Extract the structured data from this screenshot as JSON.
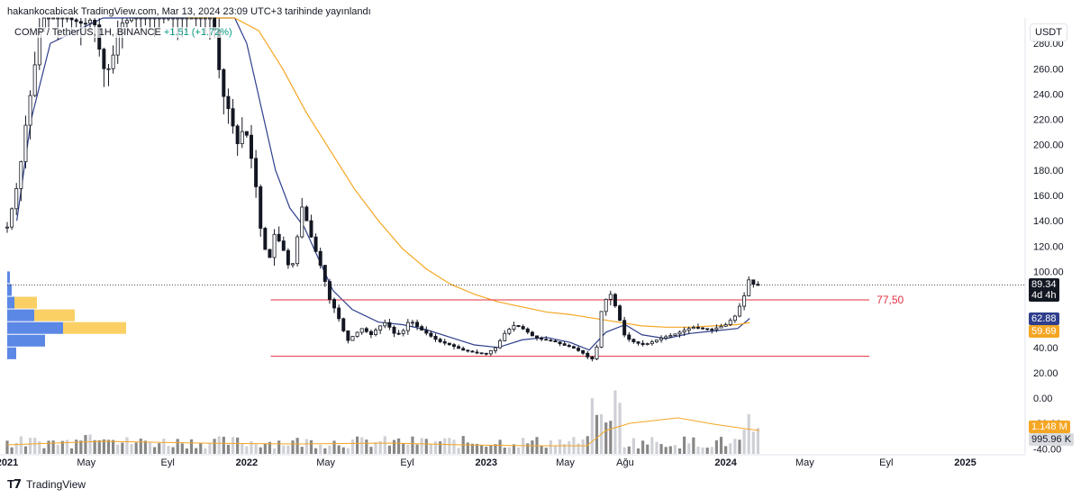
{
  "attribution": "hakankocabicak TradingView.com, Mar 13, 2024 23:09 UTC+3 tarihinde yayınlandı",
  "legend": {
    "symbol": "COMP / TetherUS, 1H, BINANCE",
    "change": "+1.51 (+1.72%)"
  },
  "unit": "USDT",
  "footer": {
    "brand": "TradingView"
  },
  "colors": {
    "up": "#ffffff",
    "down": "#131722",
    "ma_fast": "#2e3e8c",
    "ma_slow": "#f5a623",
    "level": "#e0303f",
    "vol_gray": "#7a7a7a",
    "vol_light": "#c9cbd1",
    "vp_blue": "#3f73e0",
    "vp_yellow": "#f9c84a"
  },
  "chart_data": {
    "type": "candlestick",
    "x_labels": [
      "2021",
      "May",
      "Eyl",
      "2022",
      "May",
      "Eyl",
      "2023",
      "May",
      "Ağu",
      "2024",
      "May",
      "Eyl",
      "2025"
    ],
    "x_label_dates": [
      2021.0,
      2021.33,
      2021.67,
      2022.0,
      2022.33,
      2022.67,
      2023.0,
      2023.33,
      2023.58,
      2024.0,
      2024.33,
      2024.67,
      2025.0
    ],
    "y_ticks": [
      "280.00",
      "260.00",
      "240.00",
      "220.00",
      "200.00",
      "180.00",
      "160.00",
      "140.00",
      "120.00",
      "100.00",
      "80.00",
      "60.00",
      "40.00",
      "20.00",
      "0.00",
      "-20.00",
      "-40.00"
    ],
    "y_tick_values": [
      280,
      260,
      240,
      220,
      200,
      180,
      160,
      140,
      120,
      100,
      80,
      60,
      40,
      20,
      0,
      -20,
      -40
    ],
    "ylim": [
      -44,
      300
    ],
    "xlim": [
      2021.0,
      2025.25
    ],
    "price_path": [
      [
        2021.0,
        135
      ],
      [
        2021.02,
        150
      ],
      [
        2021.05,
        175
      ],
      [
        2021.08,
        220
      ],
      [
        2021.11,
        255
      ],
      [
        2021.14,
        300
      ],
      [
        2021.25,
        300
      ],
      [
        2021.32,
        295
      ],
      [
        2021.36,
        300
      ],
      [
        2021.4,
        260
      ],
      [
        2021.43,
        260
      ],
      [
        2021.47,
        295
      ],
      [
        2021.52,
        300
      ],
      [
        2021.6,
        300
      ],
      [
        2021.7,
        300
      ],
      [
        2021.8,
        300
      ],
      [
        2021.86,
        300
      ],
      [
        2021.88,
        265
      ],
      [
        2021.9,
        240
      ],
      [
        2021.93,
        225
      ],
      [
        2021.96,
        200
      ],
      [
        2021.99,
        215
      ],
      [
        2022.01,
        200
      ],
      [
        2022.04,
        165
      ],
      [
        2022.06,
        130
      ],
      [
        2022.08,
        115
      ],
      [
        2022.1,
        110
      ],
      [
        2022.12,
        135
      ],
      [
        2022.14,
        120
      ],
      [
        2022.16,
        115
      ],
      [
        2022.18,
        100
      ],
      [
        2022.2,
        110
      ],
      [
        2022.22,
        140
      ],
      [
        2022.24,
        160
      ],
      [
        2022.25,
        140
      ],
      [
        2022.28,
        120
      ],
      [
        2022.3,
        110
      ],
      [
        2022.33,
        90
      ],
      [
        2022.35,
        75
      ],
      [
        2022.37,
        70
      ],
      [
        2022.4,
        55
      ],
      [
        2022.42,
        45
      ],
      [
        2022.45,
        50
      ],
      [
        2022.48,
        55
      ],
      [
        2022.52,
        50
      ],
      [
        2022.55,
        56
      ],
      [
        2022.58,
        60
      ],
      [
        2022.62,
        50
      ],
      [
        2022.65,
        52
      ],
      [
        2022.68,
        62
      ],
      [
        2022.72,
        55
      ],
      [
        2022.76,
        50
      ],
      [
        2022.8,
        45
      ],
      [
        2022.85,
        42
      ],
      [
        2022.9,
        38
      ],
      [
        2022.95,
        36
      ],
      [
        2023.0,
        35
      ],
      [
        2023.04,
        40
      ],
      [
        2023.08,
        52
      ],
      [
        2023.12,
        58
      ],
      [
        2023.16,
        54
      ],
      [
        2023.2,
        48
      ],
      [
        2023.24,
        46
      ],
      [
        2023.28,
        45
      ],
      [
        2023.32,
        42
      ],
      [
        2023.36,
        40
      ],
      [
        2023.4,
        36
      ],
      [
        2023.44,
        30
      ],
      [
        2023.46,
        38
      ],
      [
        2023.48,
        68
      ],
      [
        2023.5,
        78
      ],
      [
        2023.52,
        82
      ],
      [
        2023.54,
        72
      ],
      [
        2023.56,
        60
      ],
      [
        2023.58,
        48
      ],
      [
        2023.62,
        44
      ],
      [
        2023.66,
        42
      ],
      [
        2023.7,
        45
      ],
      [
        2023.74,
        48
      ],
      [
        2023.78,
        50
      ],
      [
        2023.82,
        53
      ],
      [
        2023.86,
        56
      ],
      [
        2023.9,
        55
      ],
      [
        2023.94,
        54
      ],
      [
        2024.0,
        58
      ],
      [
        2024.04,
        65
      ],
      [
        2024.08,
        82
      ],
      [
        2024.1,
        96
      ],
      [
        2024.12,
        88
      ],
      [
        2024.14,
        89.34
      ]
    ],
    "ma_fast": [
      [
        2021.04,
        140
      ],
      [
        2021.1,
        220
      ],
      [
        2021.18,
        280
      ],
      [
        2021.4,
        300
      ],
      [
        2021.95,
        300
      ],
      [
        2022.0,
        280
      ],
      [
        2022.06,
        230
      ],
      [
        2022.12,
        180
      ],
      [
        2022.18,
        150
      ],
      [
        2022.24,
        135
      ],
      [
        2022.3,
        110
      ],
      [
        2022.36,
        85
      ],
      [
        2022.44,
        70
      ],
      [
        2022.55,
        60
      ],
      [
        2022.65,
        58
      ],
      [
        2022.75,
        54
      ],
      [
        2022.85,
        48
      ],
      [
        2022.95,
        42
      ],
      [
        2023.05,
        40
      ],
      [
        2023.15,
        46
      ],
      [
        2023.25,
        48
      ],
      [
        2023.35,
        44
      ],
      [
        2023.43,
        38
      ],
      [
        2023.5,
        52
      ],
      [
        2023.58,
        58
      ],
      [
        2023.65,
        50
      ],
      [
        2023.75,
        47
      ],
      [
        2023.85,
        51
      ],
      [
        2023.95,
        53
      ],
      [
        2024.05,
        55
      ],
      [
        2024.1,
        62.88
      ]
    ],
    "ma_slow": [
      [
        2021.75,
        300
      ],
      [
        2021.85,
        300
      ],
      [
        2021.95,
        300
      ],
      [
        2022.05,
        290
      ],
      [
        2022.15,
        260
      ],
      [
        2022.25,
        225
      ],
      [
        2022.35,
        195
      ],
      [
        2022.45,
        165
      ],
      [
        2022.55,
        140
      ],
      [
        2022.65,
        118
      ],
      [
        2022.75,
        102
      ],
      [
        2022.85,
        90
      ],
      [
        2022.95,
        82
      ],
      [
        2023.05,
        76
      ],
      [
        2023.15,
        72
      ],
      [
        2023.25,
        68
      ],
      [
        2023.35,
        66
      ],
      [
        2023.45,
        63
      ],
      [
        2023.55,
        60
      ],
      [
        2023.65,
        57
      ],
      [
        2023.75,
        56
      ],
      [
        2023.85,
        56
      ],
      [
        2023.95,
        57
      ],
      [
        2024.05,
        58
      ],
      [
        2024.1,
        59.69
      ]
    ],
    "levels": [
      {
        "value": 77.5,
        "label": "77,50",
        "from": 2022.1,
        "to": 2024.6
      },
      {
        "value": 33,
        "label": "",
        "from": 2022.1,
        "to": 2024.6
      }
    ],
    "current_price": {
      "value": 89.34,
      "label": "89.34",
      "countdown": "4d 4h"
    },
    "ma_labels": [
      {
        "value": 62.88,
        "label": "62.88"
      },
      {
        "value": 59.69,
        "label": "59.69"
      }
    ],
    "volume_labels": [
      {
        "label": "1.148 M"
      },
      {
        "label": "995.96 K"
      }
    ],
    "volume_profile": [
      {
        "price": 95,
        "blue": 3,
        "yellow": 0
      },
      {
        "price": 85,
        "blue": 5,
        "yellow": 0
      },
      {
        "price": 75,
        "blue": 8,
        "yellow": 25
      },
      {
        "price": 65,
        "blue": 30,
        "yellow": 45
      },
      {
        "price": 55,
        "blue": 62,
        "yellow": 70
      },
      {
        "price": 45,
        "blue": 42,
        "yellow": 0
      },
      {
        "price": 35,
        "blue": 10,
        "yellow": 0
      }
    ]
  }
}
